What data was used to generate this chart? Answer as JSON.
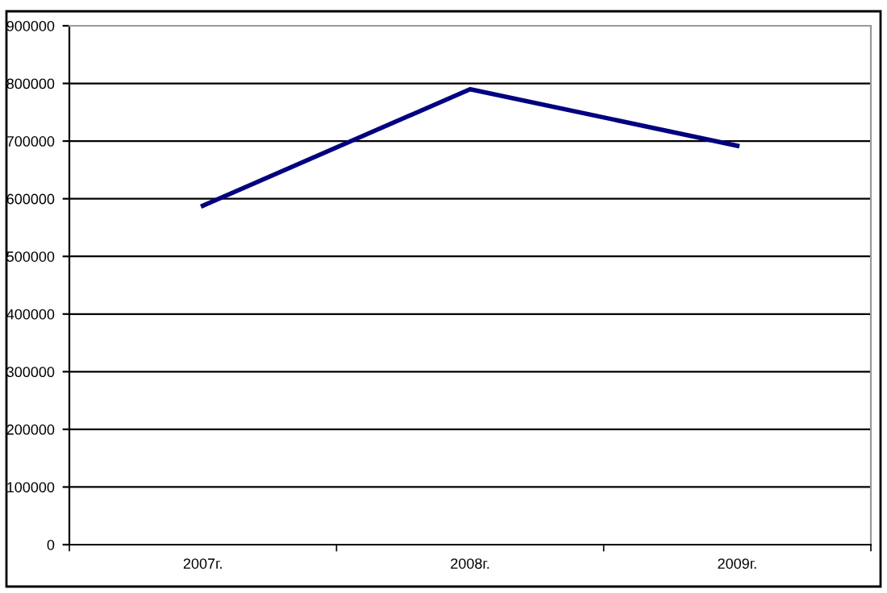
{
  "chart_data": {
    "type": "line",
    "categories": [
      "2007г.",
      "2008г.",
      "2009г."
    ],
    "series": [
      {
        "color": "#000080",
        "values": [
          588000,
          790000,
          692000
        ]
      }
    ],
    "ylim": [
      0,
      900000
    ],
    "yticks": [
      0,
      100000,
      200000,
      300000,
      400000,
      500000,
      600000,
      700000,
      800000,
      900000
    ],
    "grid": "y",
    "legend": false,
    "marker": "none",
    "line_style": "solid"
  }
}
